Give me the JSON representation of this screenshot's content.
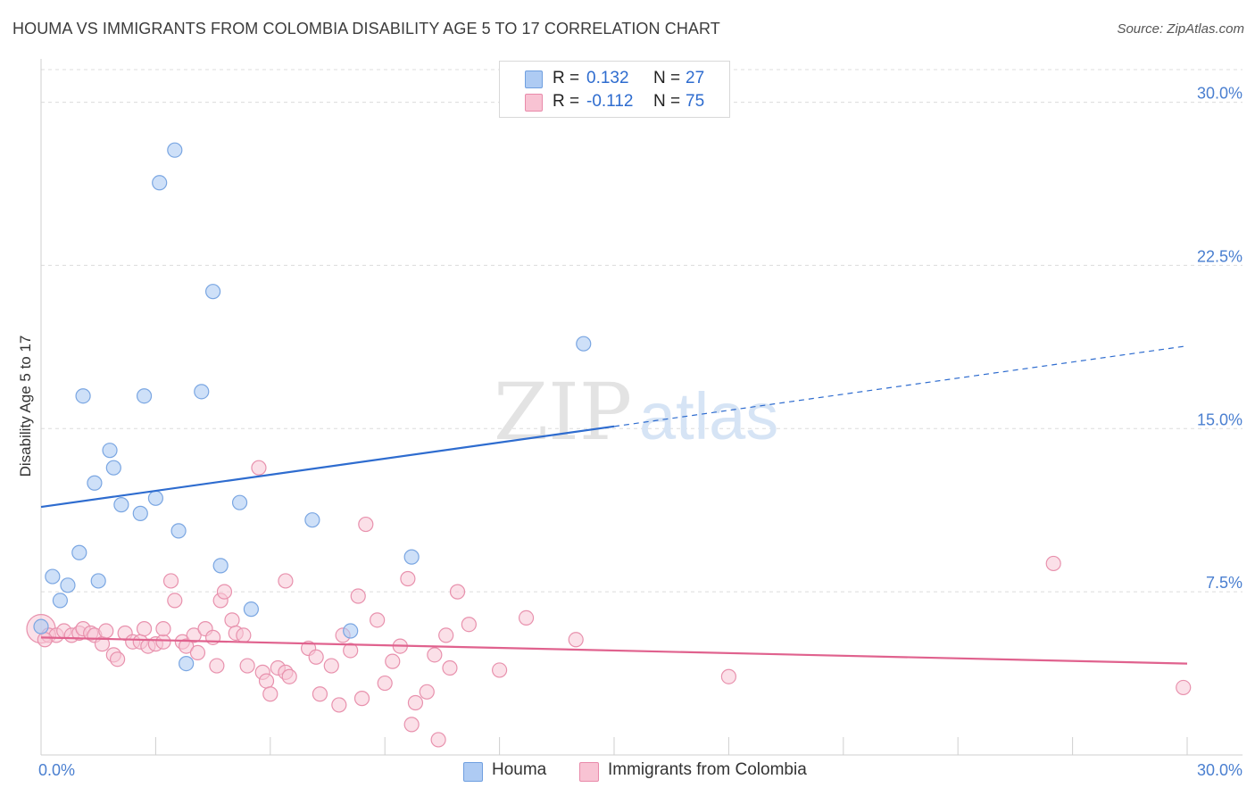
{
  "header": {
    "title": "HOUMA VS IMMIGRANTS FROM COLOMBIA DISABILITY AGE 5 TO 17 CORRELATION CHART",
    "source": "Source: ZipAtlas.com"
  },
  "watermark": {
    "zip": "ZIP",
    "atlas": "atlas"
  },
  "legend": {
    "r_label": "R =",
    "n_label": "N =",
    "series": [
      {
        "name": "Houma",
        "r": "0.132",
        "n": "27",
        "fill": "#aecbf3",
        "stroke": "#6f9fe0"
      },
      {
        "name": "Immigrants from Colombia",
        "r": "-0.112",
        "n": "75",
        "fill": "#f8c3d3",
        "stroke": "#e98aaa"
      }
    ]
  },
  "colors": {
    "houma_point_fill": "#aecbf3",
    "houma_point_stroke": "#7aa6e2",
    "houma_line": "#2e6ccf",
    "colombia_point_fill": "#f8c6d5",
    "colombia_point_stroke": "#e891ad",
    "colombia_line": "#e0628e",
    "grid": "#dcdcdc",
    "tick_text": "#4a7fd0"
  },
  "chart_data": {
    "type": "scatter",
    "title": "HOUMA VS IMMIGRANTS FROM COLOMBIA DISABILITY AGE 5 TO 17 CORRELATION CHART",
    "xlabel": "",
    "ylabel": "Disability Age 5 to 17",
    "xlim": [
      0,
      30
    ],
    "ylim": [
      0,
      31.5
    ],
    "x_tick_labels": [
      "0.0%",
      "30.0%"
    ],
    "y_ticks": [
      7.5,
      15.0,
      22.5,
      30.0
    ],
    "y_tick_labels": [
      "7.5%",
      "15.0%",
      "22.5%",
      "30.0%"
    ],
    "grid": true,
    "legend_position": "top-center",
    "series": [
      {
        "name": "Houma",
        "r": 0.132,
        "n": 27,
        "trend": {
          "x0": 0,
          "y0": 11.4,
          "x1": 15,
          "y1": 15.1,
          "dash_to_x": 30,
          "dash_to_y": 18.8
        },
        "points": [
          [
            0.0,
            5.9
          ],
          [
            0.3,
            8.2
          ],
          [
            0.5,
            7.1
          ],
          [
            0.7,
            7.8
          ],
          [
            1.0,
            9.3
          ],
          [
            1.1,
            16.5
          ],
          [
            1.4,
            12.5
          ],
          [
            1.5,
            8.0
          ],
          [
            1.8,
            14.0
          ],
          [
            1.9,
            13.2
          ],
          [
            2.1,
            11.5
          ],
          [
            2.6,
            11.1
          ],
          [
            2.7,
            16.5
          ],
          [
            3.0,
            11.8
          ],
          [
            3.1,
            26.3
          ],
          [
            3.5,
            27.8
          ],
          [
            3.6,
            10.3
          ],
          [
            3.8,
            4.2
          ],
          [
            4.2,
            16.7
          ],
          [
            4.5,
            21.3
          ],
          [
            4.7,
            8.7
          ],
          [
            5.2,
            11.6
          ],
          [
            5.5,
            6.7
          ],
          [
            7.1,
            10.8
          ],
          [
            8.1,
            5.7
          ],
          [
            9.7,
            9.1
          ],
          [
            14.2,
            18.9
          ]
        ]
      },
      {
        "name": "Immigrants from Colombia",
        "r": -0.112,
        "n": 75,
        "trend": {
          "x0": 0,
          "y0": 5.4,
          "x1": 30,
          "y1": 4.2
        },
        "points": [
          [
            0.0,
            5.8
          ],
          [
            0.2,
            5.5
          ],
          [
            0.4,
            5.5
          ],
          [
            0.6,
            5.7
          ],
          [
            0.8,
            5.5
          ],
          [
            1.0,
            5.6
          ],
          [
            1.1,
            5.8
          ],
          [
            1.3,
            5.6
          ],
          [
            1.4,
            5.5
          ],
          [
            1.6,
            5.1
          ],
          [
            1.7,
            5.7
          ],
          [
            1.9,
            4.6
          ],
          [
            2.0,
            4.4
          ],
          [
            2.2,
            5.6
          ],
          [
            2.4,
            5.2
          ],
          [
            2.6,
            5.2
          ],
          [
            2.7,
            5.8
          ],
          [
            2.8,
            5.0
          ],
          [
            3.0,
            5.1
          ],
          [
            3.2,
            5.2
          ],
          [
            3.2,
            5.8
          ],
          [
            3.4,
            8.0
          ],
          [
            3.5,
            7.1
          ],
          [
            3.7,
            5.2
          ],
          [
            3.8,
            5.0
          ],
          [
            4.0,
            5.5
          ],
          [
            4.1,
            4.7
          ],
          [
            4.3,
            5.8
          ],
          [
            4.5,
            5.4
          ],
          [
            4.6,
            4.1
          ],
          [
            4.7,
            7.1
          ],
          [
            4.8,
            7.5
          ],
          [
            5.0,
            6.2
          ],
          [
            5.1,
            5.6
          ],
          [
            5.3,
            5.5
          ],
          [
            5.4,
            4.1
          ],
          [
            5.8,
            3.8
          ],
          [
            5.9,
            3.4
          ],
          [
            6.0,
            2.8
          ],
          [
            6.2,
            4.0
          ],
          [
            6.4,
            3.8
          ],
          [
            6.5,
            3.6
          ],
          [
            5.7,
            13.2
          ],
          [
            6.4,
            8.0
          ],
          [
            7.0,
            4.9
          ],
          [
            7.2,
            4.5
          ],
          [
            7.3,
            2.8
          ],
          [
            7.6,
            4.1
          ],
          [
            7.8,
            2.3
          ],
          [
            7.9,
            5.5
          ],
          [
            8.1,
            4.8
          ],
          [
            8.3,
            7.3
          ],
          [
            8.4,
            2.6
          ],
          [
            8.5,
            10.6
          ],
          [
            8.8,
            6.2
          ],
          [
            9.0,
            3.3
          ],
          [
            9.2,
            4.3
          ],
          [
            9.4,
            5.0
          ],
          [
            9.6,
            8.1
          ],
          [
            9.7,
            1.4
          ],
          [
            9.8,
            2.4
          ],
          [
            10.1,
            2.9
          ],
          [
            10.3,
            4.6
          ],
          [
            10.4,
            0.7
          ],
          [
            10.6,
            5.5
          ],
          [
            10.7,
            4.0
          ],
          [
            10.9,
            7.5
          ],
          [
            11.2,
            6.0
          ],
          [
            12.0,
            3.9
          ],
          [
            12.7,
            6.3
          ],
          [
            14.0,
            5.3
          ],
          [
            18.0,
            3.6
          ],
          [
            26.5,
            8.8
          ],
          [
            29.9,
            3.1
          ],
          [
            0.1,
            5.3
          ]
        ]
      }
    ]
  }
}
